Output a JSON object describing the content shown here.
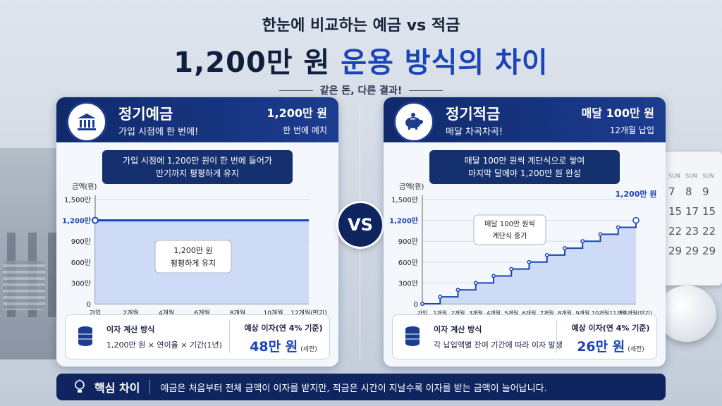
{
  "header": {
    "subtitle": "한눈에 비교하는 예금 vs 적금",
    "title_prefix": "1,200만 원 ",
    "title_highlight": "운용 방식의 차이",
    "tagline": "같은 돈, 다른 결과!"
  },
  "vs_label": "VS",
  "calendar": {
    "days": [
      "SUN",
      "SUN",
      "SUN"
    ],
    "dates": [
      "7",
      "8",
      "9",
      "15",
      "17",
      "15",
      "22",
      "23",
      "22",
      "29",
      "29",
      "29"
    ]
  },
  "deposit": {
    "name": "정기예금",
    "desc": "가입 시점에 한 번에!",
    "amount": "1,200만 원",
    "amount_sub": "한 번에 예치",
    "callout_1": "가입 시점에 1,200만 원이 한 번에 들어가",
    "callout_2": "만기까지 평평하게 유지",
    "chart_note_1": "1,200만 원",
    "chart_note_2": "평평하게 유지",
    "interest_label": "이자 계산 방식",
    "interest_formula": "1,200만 원 × 연이율 × 기간(1년)",
    "estimate_label": "예상 이자(연 4% 기준)",
    "estimate_value": "48만 원",
    "estimate_note": "(세전)"
  },
  "savings": {
    "name": "정기적금",
    "desc": "매달 차곡차곡!",
    "amount": "매달 100만 원",
    "amount_sub": "12개월 납입",
    "callout_1": "매달 100만 원씩 계단식으로 쌓여",
    "callout_2": "마지막 달에야 1,200만 원 완성",
    "chart_note_1": "매달 100만 원씩",
    "chart_note_2": "계단식 증가",
    "end_label": "1,200만 원",
    "interest_label": "이자 계산 방식",
    "interest_formula": "각 납입액별 잔여 기간에 따라 이자 발생",
    "estimate_label": "예상 이자(연 4% 기준)",
    "estimate_value": "26만 원",
    "estimate_note": "(세전)"
  },
  "key": {
    "title": "핵심 차이",
    "text": "예금은 처음부터 전체 금액이 이자를 받지만, 적금은 시간이 지날수록 이자를 받는 금액이 늘어납니다."
  },
  "chart_data": [
    {
      "type": "area",
      "ylabel": "금액(원)",
      "y_ticks": [
        "0",
        "300만",
        "600만",
        "900만",
        "1,200만",
        "1,500만"
      ],
      "y_tick_values": [
        0,
        300,
        600,
        900,
        1200,
        1500
      ],
      "highlight_tick": "1,200만",
      "ylim": [
        0,
        1500
      ],
      "x_labels": [
        "가입",
        "2개월",
        "4개월",
        "6개월",
        "8개월",
        "10개월",
        "12개월(만기)"
      ],
      "x": [
        0,
        2,
        4,
        6,
        8,
        10,
        12
      ],
      "series": [
        {
          "values": [
            1200,
            1200,
            1200,
            1200,
            1200,
            1200,
            1200
          ]
        }
      ]
    },
    {
      "type": "area",
      "ylabel": "금액(원)",
      "y_ticks": [
        "0",
        "300만",
        "600만",
        "900만",
        "1,200만",
        "1,500만"
      ],
      "y_tick_values": [
        0,
        300,
        600,
        900,
        1200,
        1500
      ],
      "highlight_tick": "1,200만",
      "ylim": [
        0,
        1500
      ],
      "x_labels": [
        "가입",
        "1개월",
        "2개월",
        "3개월",
        "4개월",
        "5개월",
        "6개월",
        "7개월",
        "8개월",
        "9개월",
        "10개월",
        "11개월",
        "12개월(만기)"
      ],
      "x": [
        0,
        1,
        2,
        3,
        4,
        5,
        6,
        7,
        8,
        9,
        10,
        11,
        12
      ],
      "series": [
        {
          "values": [
            0,
            100,
            200,
            300,
            400,
            500,
            600,
            700,
            800,
            900,
            1000,
            1100,
            1200
          ]
        }
      ]
    }
  ],
  "colors": {
    "navy": "#0f2560",
    "accent": "#1a44b8",
    "area": "#c6d6f4"
  }
}
